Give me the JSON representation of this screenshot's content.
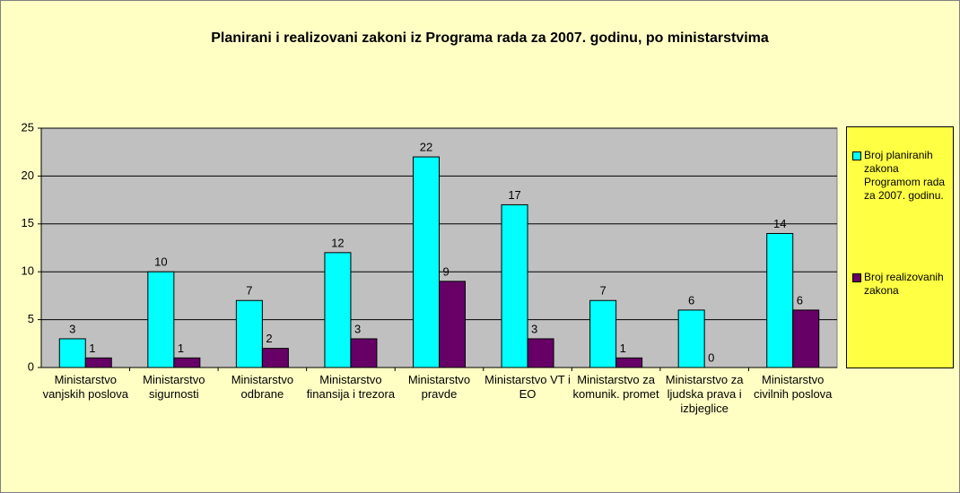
{
  "chart_data": {
    "type": "bar",
    "title": "Planirani i realizovani zakoni iz Programa rada za 2007. godinu, po ministarstvima",
    "categories": [
      "Ministarstvo vanjskih poslova",
      "Ministarstvo sigurnosti",
      "Ministarstvo odbrane",
      "Ministarstvo finansija i trezora",
      "Ministarstvo pravde",
      "Ministarstvo VT i EO",
      "Ministarstvo za komunik. promet",
      "Ministarstvo za ljudska prava i izbjeglice",
      "Ministarstvo civilnih poslova"
    ],
    "series": [
      {
        "name": "Broj planiranih zakona Programom rada za 2007. godinu.",
        "color": "#00ffff",
        "values": [
          3,
          10,
          7,
          12,
          22,
          17,
          7,
          6,
          14
        ]
      },
      {
        "name": "Broj realizovanih zakona",
        "color": "#660066",
        "values": [
          1,
          1,
          2,
          3,
          9,
          3,
          1,
          0,
          6
        ]
      }
    ],
    "ylim": [
      0,
      25
    ],
    "yticks": [
      0,
      5,
      10,
      15,
      20,
      25
    ],
    "grid": true,
    "legend": "right"
  }
}
